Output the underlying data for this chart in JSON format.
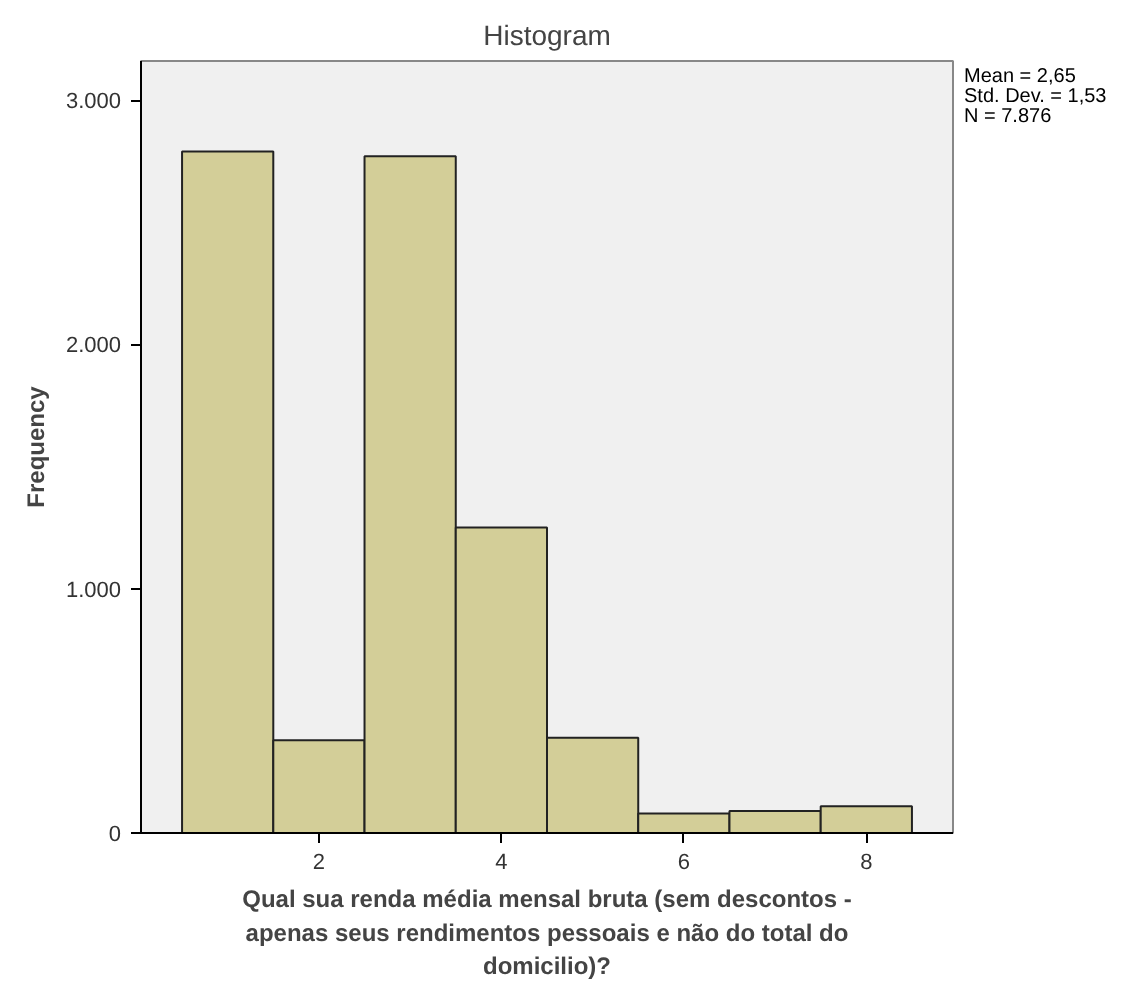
{
  "chart_data": {
    "type": "histogram",
    "title": "Histogram",
    "xlabel": "Qual sua renda média mensal bruta (sem descontos - apenas seus rendimentos pessoais e não do total do domicilio)?",
    "ylabel": "Frequency",
    "bins": [
      0.5,
      1.5,
      2.5,
      3.5,
      4.5,
      5.5,
      6.5,
      7.5,
      8.5
    ],
    "values": [
      2790,
      380,
      2770,
      1250,
      390,
      80,
      90,
      110
    ],
    "color": "#d3ce98",
    "xlim": [
      0.05,
      8.95
    ],
    "xticks": [
      2,
      4,
      6,
      8
    ],
    "ylim": [
      0,
      3160
    ],
    "yticks": [
      {
        "value": 0,
        "label": "0"
      },
      {
        "value": 1000,
        "label": "1.000"
      },
      {
        "value": 2000,
        "label": "2.000"
      },
      {
        "value": 3000,
        "label": "3.000"
      }
    ],
    "annotations": [
      "Mean = 2,65",
      "Std. Dev. = 1,53",
      "N = 7.876"
    ],
    "grid": false
  }
}
